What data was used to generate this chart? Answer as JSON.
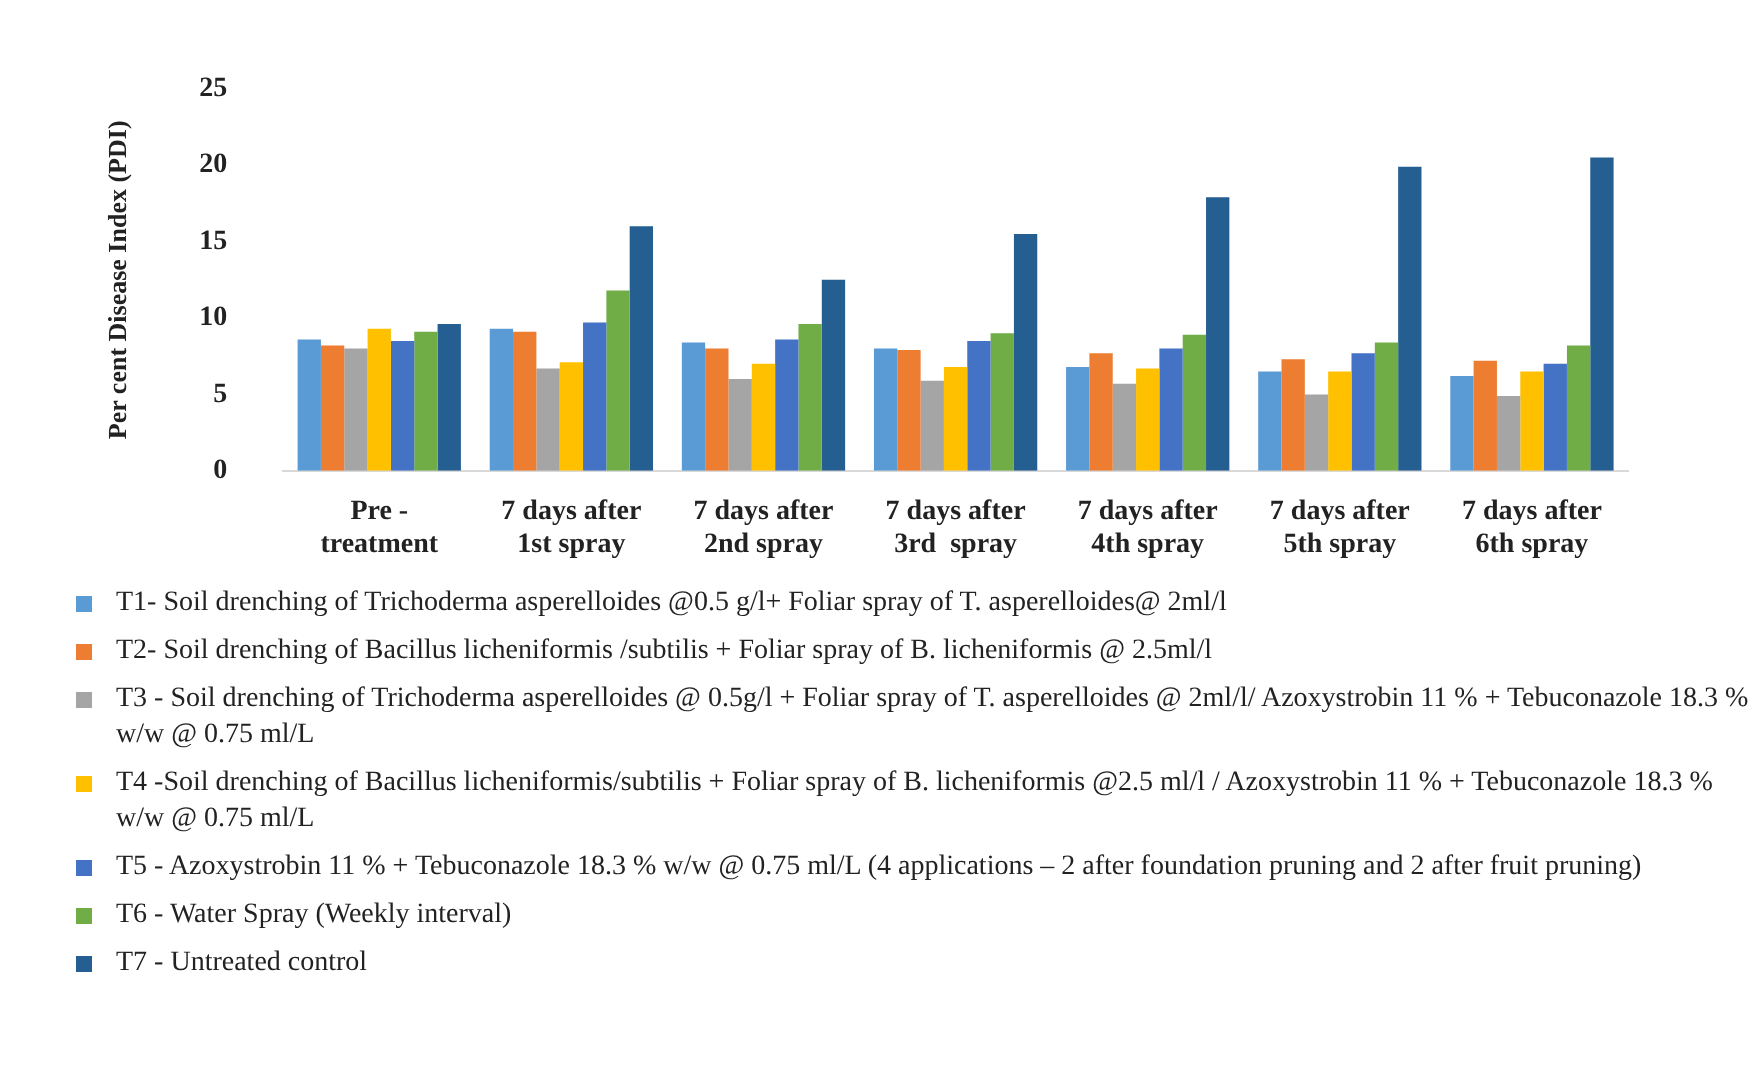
{
  "chart_data": {
    "type": "bar",
    "ylabel": "Per cent Disease Index (PDI)",
    "categories": [
      "Pre - treatment",
      "7 days after 1st spray",
      "7 days after 2nd spray",
      "7 days after 3rd  spray",
      "7 days after 4th spray",
      "7 days after 5th spray",
      "7 days after 6th spray"
    ],
    "ylim": [
      0,
      25
    ],
    "yticks": [
      0,
      5,
      10,
      15,
      20,
      25
    ],
    "grid": false,
    "legend": "bottom",
    "series": [
      {
        "name": "T1- Soil drenching of Trichoderma asperelloides @0.5 g/l+ Foliar spray of T. asperelloides@ 2ml/l",
        "color": "#5b9bd5",
        "values": [
          8.6,
          9.3,
          8.4,
          8.0,
          6.8,
          6.5,
          6.2
        ]
      },
      {
        "name": "T2- Soil drenching of Bacillus licheniformis /subtilis + Foliar spray of B. licheniformis @ 2.5ml/l",
        "color": "#ed7d31",
        "values": [
          8.2,
          9.1,
          8.0,
          7.9,
          7.7,
          7.3,
          7.2
        ]
      },
      {
        "name": "T3 - Soil drenching of Trichoderma asperelloides @ 0.5g/l + Foliar spray of T. asperelloides @ 2ml/l/ Azoxystrobin 11 % + Tebuconazole 18.3 % w/w @ 0.75 ml/L",
        "color": "#a5a5a5",
        "values": [
          8.0,
          6.7,
          6.0,
          5.9,
          5.7,
          5.0,
          4.9
        ]
      },
      {
        "name": "T4 -Soil drenching of Bacillus licheniformis/subtilis + Foliar spray of B. licheniformis @2.5 ml/l / Azoxystrobin 11 % + Tebuconazole 18.3 % w/w @ 0.75 ml/L",
        "color": "#ffc000",
        "values": [
          9.3,
          7.1,
          7.0,
          6.8,
          6.7,
          6.5,
          6.5
        ]
      },
      {
        "name": "T5 - Azoxystrobin 11 % + Tebuconazole 18.3 % w/w @ 0.75 ml/L (4 applications – 2 after foundation pruning and 2 after fruit pruning)",
        "color": "#4472c4",
        "values": [
          8.5,
          9.7,
          8.6,
          8.5,
          8.0,
          7.7,
          7.0
        ]
      },
      {
        "name": "T6 - Water Spray (Weekly interval)",
        "color": "#70ad47",
        "values": [
          9.1,
          11.8,
          9.6,
          9.0,
          8.9,
          8.4,
          8.2
        ]
      },
      {
        "name": "T7 - Untreated control",
        "color": "#255e91",
        "values": [
          9.6,
          16.0,
          12.5,
          15.5,
          17.9,
          19.9,
          20.5
        ]
      }
    ]
  }
}
